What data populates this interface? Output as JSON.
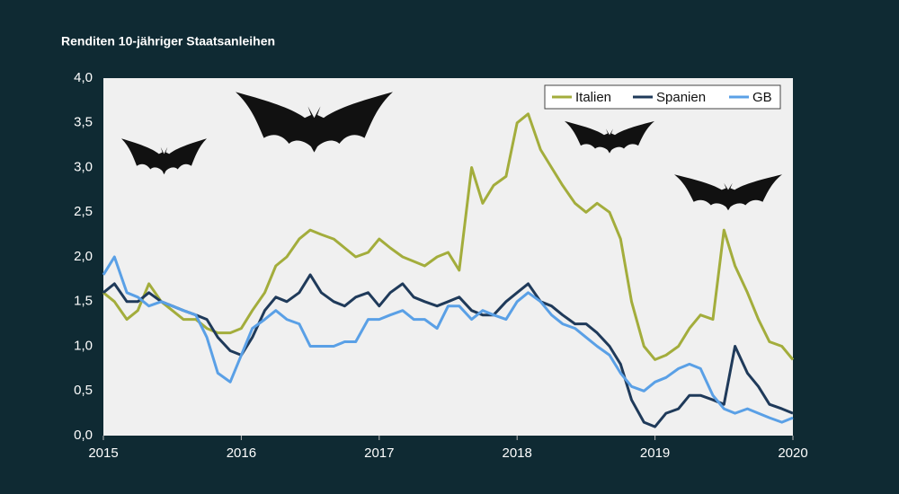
{
  "chart_data": {
    "type": "line",
    "title": "Renditen 10-jähriger Staatsanleihen",
    "x": [
      2015,
      2015.08,
      2015.17,
      2015.25,
      2015.33,
      2015.42,
      2015.5,
      2015.58,
      2015.67,
      2015.75,
      2015.83,
      2015.92,
      2016,
      2016.08,
      2016.17,
      2016.25,
      2016.33,
      2016.42,
      2016.5,
      2016.58,
      2016.67,
      2016.75,
      2016.83,
      2016.92,
      2017,
      2017.08,
      2017.17,
      2017.25,
      2017.33,
      2017.42,
      2017.5,
      2017.58,
      2017.67,
      2017.75,
      2017.83,
      2017.92,
      2018,
      2018.08,
      2018.17,
      2018.25,
      2018.33,
      2018.42,
      2018.5,
      2018.58,
      2018.67,
      2018.75,
      2018.83,
      2018.92,
      2019,
      2019.08,
      2019.17,
      2019.25,
      2019.33,
      2019.42,
      2019.5,
      2019.58,
      2019.67,
      2019.75,
      2019.83,
      2019.92,
      2020
    ],
    "series": [
      {
        "name": "Italien",
        "color": "#a3ad3c",
        "values": [
          1.6,
          1.5,
          1.3,
          1.4,
          1.7,
          1.5,
          1.4,
          1.3,
          1.3,
          1.2,
          1.15,
          1.15,
          1.2,
          1.4,
          1.6,
          1.9,
          2.0,
          2.2,
          2.3,
          2.25,
          2.2,
          2.1,
          2.0,
          2.05,
          2.2,
          2.1,
          2.0,
          1.95,
          1.9,
          2.0,
          2.05,
          1.85,
          3.0,
          2.6,
          2.8,
          2.9,
          3.5,
          3.6,
          3.2,
          3.0,
          2.8,
          2.6,
          2.5,
          2.6,
          2.5,
          2.2,
          1.5,
          1.0,
          0.85,
          0.9,
          1.0,
          1.2,
          1.35,
          1.3,
          2.3,
          1.9,
          1.6,
          1.3,
          1.05,
          1.0,
          0.85
        ]
      },
      {
        "name": "Spanien",
        "color": "#1f3a5a",
        "values": [
          1.6,
          1.7,
          1.5,
          1.5,
          1.6,
          1.5,
          1.45,
          1.4,
          1.35,
          1.3,
          1.1,
          0.95,
          0.9,
          1.1,
          1.4,
          1.55,
          1.5,
          1.6,
          1.8,
          1.6,
          1.5,
          1.45,
          1.55,
          1.6,
          1.45,
          1.6,
          1.7,
          1.55,
          1.5,
          1.45,
          1.5,
          1.55,
          1.4,
          1.35,
          1.35,
          1.5,
          1.6,
          1.7,
          1.5,
          1.45,
          1.35,
          1.25,
          1.25,
          1.15,
          1.0,
          0.8,
          0.4,
          0.15,
          0.1,
          0.25,
          0.3,
          0.45,
          0.45,
          0.4,
          0.35,
          1.0,
          0.7,
          0.55,
          0.35,
          0.3,
          0.25
        ]
      },
      {
        "name": "GB",
        "color": "#5aa0e6",
        "values": [
          1.8,
          2.0,
          1.6,
          1.55,
          1.45,
          1.5,
          1.45,
          1.4,
          1.35,
          1.1,
          0.7,
          0.6,
          0.9,
          1.2,
          1.3,
          1.4,
          1.3,
          1.25,
          1.0,
          1.0,
          1.0,
          1.05,
          1.05,
          1.3,
          1.3,
          1.35,
          1.4,
          1.3,
          1.3,
          1.2,
          1.45,
          1.45,
          1.3,
          1.4,
          1.35,
          1.3,
          1.5,
          1.6,
          1.5,
          1.35,
          1.25,
          1.2,
          1.1,
          1.0,
          0.9,
          0.7,
          0.55,
          0.5,
          0.6,
          0.65,
          0.75,
          0.8,
          0.75,
          0.45,
          0.3,
          0.25,
          0.3,
          0.25,
          0.2,
          0.15,
          0.2
        ]
      }
    ],
    "xlim": [
      2015,
      2020
    ],
    "xticks": [
      2015,
      2016,
      2017,
      2018,
      2019,
      2020
    ],
    "ylim": [
      0,
      4
    ],
    "yticks": [
      {
        "value": 0,
        "label": "0,0"
      },
      {
        "value": 0.5,
        "label": "0,5"
      },
      {
        "value": 1,
        "label": "1,0"
      },
      {
        "value": 1.5,
        "label": "1,5"
      },
      {
        "value": 2,
        "label": "2,0"
      },
      {
        "value": 2.5,
        "label": "2,5"
      },
      {
        "value": 3,
        "label": "3,0"
      },
      {
        "value": 3.5,
        "label": "3,5"
      },
      {
        "value": 4,
        "label": "4,0"
      }
    ],
    "grid": false,
    "legend": "top-right"
  }
}
